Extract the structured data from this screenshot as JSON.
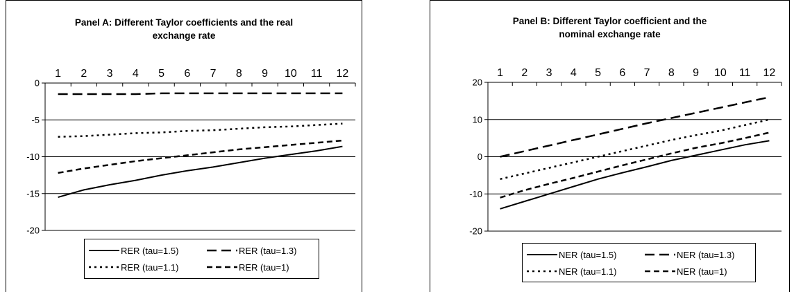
{
  "chart_data": [
    {
      "type": "line",
      "title": "Panel A: Different Taylor coefficients and the real exchange rate",
      "title_lines": [
        "Panel A: Different Taylor coefficients and the real",
        "exchange rate"
      ],
      "categories": [
        "1",
        "2",
        "3",
        "4",
        "5",
        "6",
        "7",
        "8",
        "9",
        "10",
        "11",
        "12"
      ],
      "ylim": [
        -20,
        0
      ],
      "yticks": [
        0,
        -5,
        -10,
        -15,
        -20
      ],
      "ytick_labels": [
        "0",
        "-5",
        "-10",
        "-15",
        "-20"
      ],
      "xaxis_position": "top",
      "grid": "horizontal",
      "legend_position": "bottom",
      "series": [
        {
          "name": "RER (tau=1.5)",
          "dash": "solid",
          "values": [
            -15.5,
            -14.5,
            -13.8,
            -13.2,
            -12.5,
            -11.9,
            -11.4,
            -10.8,
            -10.2,
            -9.7,
            -9.2,
            -8.6
          ]
        },
        {
          "name": "RER (tau=1.3)",
          "dash": "long-dash",
          "values": [
            -1.5,
            -1.5,
            -1.5,
            -1.5,
            -1.4,
            -1.4,
            -1.4,
            -1.4,
            -1.4,
            -1.4,
            -1.4,
            -1.4
          ]
        },
        {
          "name": "RER (tau=1.1)",
          "dash": "dot",
          "values": [
            -7.3,
            -7.2,
            -7.0,
            -6.8,
            -6.7,
            -6.5,
            -6.4,
            -6.2,
            -6.0,
            -5.9,
            -5.7,
            -5.5
          ]
        },
        {
          "name": "RER (tau=1)",
          "dash": "dash",
          "values": [
            -12.2,
            -11.6,
            -11.1,
            -10.6,
            -10.2,
            -9.8,
            -9.4,
            -9.0,
            -8.7,
            -8.4,
            -8.1,
            -7.8
          ]
        }
      ]
    },
    {
      "type": "line",
      "title": "Panel B: Different Taylor coefficient and the nominal exchange rate",
      "title_lines": [
        "Panel B: Different Taylor coefficient and the",
        "nominal exchange rate"
      ],
      "categories": [
        "1",
        "2",
        "3",
        "4",
        "5",
        "6",
        "7",
        "8",
        "9",
        "10",
        "11",
        "12"
      ],
      "ylim": [
        -20,
        20
      ],
      "yticks": [
        20,
        10,
        0,
        -10,
        -20
      ],
      "ytick_labels": [
        "20",
        "10",
        "0",
        "-10",
        "-20"
      ],
      "xaxis_position": "top",
      "grid": "horizontal",
      "legend_position": "bottom",
      "series": [
        {
          "name": "NER (tau=1.5)",
          "dash": "solid",
          "values": [
            -14,
            -12,
            -10,
            -8,
            -6,
            -4.3,
            -2.7,
            -1,
            0.4,
            1.8,
            3.2,
            4.3
          ]
        },
        {
          "name": "NER (tau=1.3)",
          "dash": "long-dash",
          "values": [
            0,
            1.5,
            3,
            4.5,
            6,
            7.5,
            9,
            10.4,
            11.8,
            13.2,
            14.6,
            16
          ]
        },
        {
          "name": "NER (tau=1.1)",
          "dash": "dot",
          "values": [
            -6,
            -4.5,
            -3,
            -1.5,
            0,
            1.5,
            3,
            4.5,
            5.8,
            7,
            8.5,
            10
          ]
        },
        {
          "name": "NER (tau=1)",
          "dash": "dash",
          "values": [
            -11,
            -9,
            -7.3,
            -5.7,
            -4,
            -2.3,
            -0.7,
            0.9,
            2.4,
            3.6,
            5,
            6.5
          ]
        }
      ]
    }
  ]
}
